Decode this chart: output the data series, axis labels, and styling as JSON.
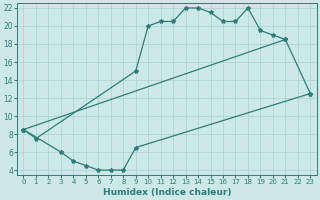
{
  "xlabel": "Humidex (Indice chaleur)",
  "color": "#2e7d7a",
  "bg_color": "#cce8e8",
  "grid_color": "#aad0d0",
  "ylim": [
    3.5,
    22.5
  ],
  "xlim": [
    -0.5,
    23.5
  ],
  "yticks": [
    4,
    6,
    8,
    10,
    12,
    14,
    16,
    18,
    20,
    22
  ],
  "xticks": [
    0,
    1,
    2,
    3,
    4,
    5,
    6,
    7,
    8,
    9,
    10,
    11,
    12,
    13,
    14,
    15,
    16,
    17,
    18,
    19,
    20,
    21,
    22,
    23
  ],
  "curve1_x": [
    0,
    1,
    9,
    10,
    11,
    12,
    13,
    14,
    15,
    16,
    17,
    18,
    19,
    20,
    21
  ],
  "curve1_y": [
    8.5,
    7.5,
    15.0,
    20.0,
    20.5,
    20.5,
    22.0,
    22.0,
    21.5,
    20.5,
    20.5,
    22.0,
    19.5,
    19.0,
    18.5
  ],
  "curve2_x": [
    0,
    21,
    23
  ],
  "curve2_y": [
    8.5,
    18.5,
    12.5
  ],
  "curve3_x": [
    0,
    3,
    4,
    5,
    6,
    7,
    8,
    9,
    23
  ],
  "curve3_y": [
    8.5,
    6.0,
    5.0,
    4.5,
    4.0,
    4.0,
    4.0,
    6.5,
    12.5
  ],
  "tick_fontsize": 5.0,
  "xlabel_fontsize": 6.5,
  "marker_size": 3.0,
  "linewidth": 0.9
}
